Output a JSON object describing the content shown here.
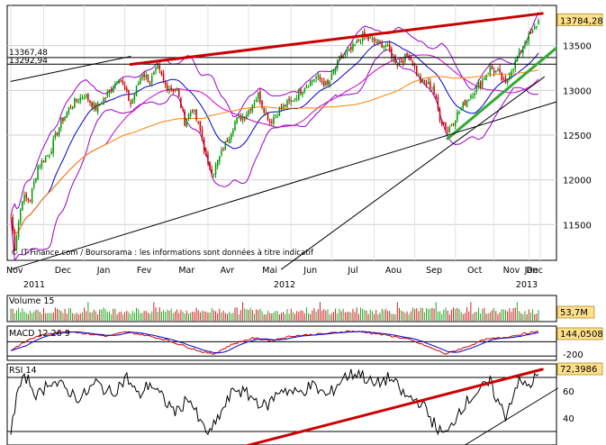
{
  "chart_data": [
    {
      "type": "candlestick",
      "panel": "price",
      "watermark": "© IT-Finance.com / Boursorama : les informations sont données à titre indicatif",
      "ylim": [
        11100,
        13950
      ],
      "yticks": [
        11500,
        12000,
        12500,
        13000,
        13500
      ],
      "grid": true,
      "x_month_labels": [
        "Nov",
        "Dec",
        "Jan",
        "Fev",
        "Mar",
        "Avr",
        "Mai",
        "Jun",
        "Jul",
        "Aou",
        "Sep",
        "Oct",
        "Nov",
        "Dec",
        "Jan"
      ],
      "x_year_labels": [
        "2011",
        "2012",
        "2013"
      ],
      "horizontal_levels": [
        {
          "label": "13367,48",
          "value": 13367.48
        },
        {
          "label": "13292,94",
          "value": 13292.94
        }
      ],
      "last_value_label": "13784,28",
      "last_value": 13784.28,
      "close_anchors": [
        [
          0,
          11600
        ],
        [
          2,
          11250
        ],
        [
          6,
          11800
        ],
        [
          10,
          11780
        ],
        [
          14,
          12150
        ],
        [
          20,
          12300
        ],
        [
          26,
          12650
        ],
        [
          32,
          12850
        ],
        [
          38,
          12950
        ],
        [
          44,
          12800
        ],
        [
          50,
          12950
        ],
        [
          56,
          13150
        ],
        [
          62,
          12850
        ],
        [
          68,
          13200
        ],
        [
          72,
          13100
        ],
        [
          76,
          13250
        ],
        [
          80,
          13050
        ],
        [
          86,
          13000
        ],
        [
          90,
          12650
        ],
        [
          94,
          12800
        ],
        [
          98,
          12550
        ],
        [
          102,
          12150
        ],
        [
          105,
          12100
        ],
        [
          110,
          12350
        ],
        [
          116,
          12650
        ],
        [
          122,
          12750
        ],
        [
          128,
          12950
        ],
        [
          134,
          12650
        ],
        [
          140,
          12800
        ],
        [
          146,
          12900
        ],
        [
          152,
          13050
        ],
        [
          158,
          13150
        ],
        [
          164,
          13050
        ],
        [
          170,
          13350
        ],
        [
          176,
          13450
        ],
        [
          182,
          13600
        ],
        [
          188,
          13550
        ],
        [
          194,
          13500
        ],
        [
          200,
          13300
        ],
        [
          206,
          13400
        ],
        [
          212,
          13100
        ],
        [
          218,
          13050
        ],
        [
          222,
          12700
        ],
        [
          226,
          12550
        ],
        [
          230,
          12700
        ],
        [
          236,
          12900
        ],
        [
          242,
          13050
        ],
        [
          248,
          13250
        ],
        [
          252,
          13200
        ],
        [
          256,
          13050
        ],
        [
          258,
          13200
        ],
        [
          262,
          13350
        ],
        [
          266,
          13550
        ],
        [
          270,
          13650
        ],
        [
          273,
          13784
        ]
      ],
      "series": [
        {
          "name": "Bollinger",
          "color": "#9900cc"
        },
        {
          "name": "MM 20",
          "color": "#0000cc"
        },
        {
          "name": "MM 50",
          "color": "#cc00cc"
        },
        {
          "name": "MM 100",
          "color": "#ff8000"
        }
      ],
      "trendlines": [
        {
          "color": "#cc0000",
          "from": [
            62,
            13290
          ],
          "to": [
            275,
            13860
          ]
        },
        {
          "color": "#33aa33",
          "from": [
            226,
            12460
          ],
          "to": [
            282,
            13470
          ]
        },
        {
          "color": "#000000",
          "from": [
            0,
            13100
          ],
          "to": [
            62,
            13380
          ]
        },
        {
          "color": "#000000",
          "from": [
            0,
            11000
          ],
          "to": [
            282,
            12870
          ]
        },
        {
          "color": "#000000",
          "from": [
            140,
            11000
          ],
          "to": [
            276,
            13150
          ]
        }
      ]
    },
    {
      "type": "bar",
      "panel": "volume",
      "title": "Volume 15",
      "last_value_label": "53,7M",
      "ylim": [
        0,
        100
      ],
      "values_hint": "daily volume bars, mostly 30-60 with sparse spikes",
      "spikes": [
        40,
        74,
        120,
        160,
        200,
        220,
        238,
        262
      ]
    },
    {
      "type": "line",
      "panel": "macd",
      "title": "MACD 12 26 9",
      "last_value_label": "144,0508",
      "level_label": "-200",
      "ylim": [
        -260,
        220
      ],
      "macd_anchors": [
        [
          0,
          -120
        ],
        [
          10,
          40
        ],
        [
          20,
          120
        ],
        [
          30,
          150
        ],
        [
          40,
          110
        ],
        [
          50,
          80
        ],
        [
          60,
          140
        ],
        [
          70,
          90
        ],
        [
          80,
          30
        ],
        [
          90,
          -60
        ],
        [
          100,
          -150
        ],
        [
          105,
          -170
        ],
        [
          115,
          -30
        ],
        [
          125,
          50
        ],
        [
          135,
          20
        ],
        [
          145,
          80
        ],
        [
          155,
          100
        ],
        [
          165,
          120
        ],
        [
          175,
          150
        ],
        [
          185,
          130
        ],
        [
          195,
          90
        ],
        [
          205,
          40
        ],
        [
          215,
          -60
        ],
        [
          225,
          -170
        ],
        [
          235,
          -80
        ],
        [
          245,
          30
        ],
        [
          255,
          60
        ],
        [
          265,
          110
        ],
        [
          273,
          144
        ]
      ]
    },
    {
      "type": "line",
      "panel": "rsi",
      "title": "RSI 14",
      "last_value_label": "72,3986",
      "yticks": [
        40,
        60
      ],
      "ylim": [
        20,
        80
      ],
      "rsi_anchors": [
        [
          0,
          32
        ],
        [
          4,
          62
        ],
        [
          8,
          70
        ],
        [
          14,
          56
        ],
        [
          20,
          68
        ],
        [
          28,
          62
        ],
        [
          36,
          54
        ],
        [
          44,
          66
        ],
        [
          52,
          58
        ],
        [
          60,
          70
        ],
        [
          66,
          56
        ],
        [
          72,
          66
        ],
        [
          80,
          52
        ],
        [
          86,
          44
        ],
        [
          92,
          56
        ],
        [
          98,
          36
        ],
        [
          103,
          28
        ],
        [
          108,
          42
        ],
        [
          116,
          62
        ],
        [
          124,
          56
        ],
        [
          132,
          48
        ],
        [
          140,
          62
        ],
        [
          148,
          58
        ],
        [
          156,
          64
        ],
        [
          164,
          56
        ],
        [
          172,
          70
        ],
        [
          180,
          74
        ],
        [
          188,
          64
        ],
        [
          196,
          70
        ],
        [
          204,
          56
        ],
        [
          212,
          52
        ],
        [
          218,
          38
        ],
        [
          222,
          30
        ],
        [
          226,
          28
        ],
        [
          232,
          46
        ],
        [
          240,
          58
        ],
        [
          248,
          66
        ],
        [
          252,
          52
        ],
        [
          256,
          42
        ],
        [
          262,
          66
        ],
        [
          268,
          64
        ],
        [
          273,
          72
        ]
      ],
      "trendlines": [
        {
          "color": "#cc0000",
          "from": [
            118,
            18
          ],
          "to": [
            275,
            76
          ]
        },
        {
          "color": "#000000",
          "from": [
            235,
            20
          ],
          "to": [
            283,
            62
          ]
        }
      ]
    }
  ]
}
